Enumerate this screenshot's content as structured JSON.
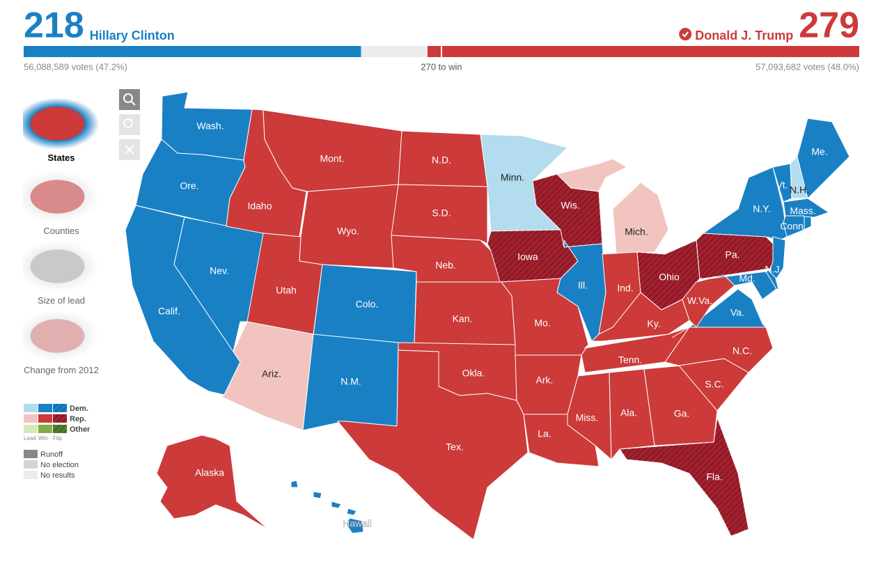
{
  "header": {
    "clinton": {
      "electoral_votes": 218,
      "name": "Hillary Clinton",
      "votes": "56,088,589 votes (47.2%)",
      "color": "#1a80c4"
    },
    "trump": {
      "electoral_votes": 279,
      "name": "Donald J. Trump",
      "votes": "57,093,682 votes (48.0%)",
      "color": "#cc3a3a",
      "winner": true
    },
    "to_win": {
      "value": 270,
      "label": "270 to win"
    }
  },
  "sidebar": {
    "views": [
      "States",
      "Counties",
      "Size of lead",
      "Change from 2012"
    ]
  },
  "legend": {
    "columns": [
      "Lead",
      "Win",
      "Flip"
    ],
    "parties": [
      {
        "label": "Dem.",
        "colors": [
          "#b3dcef",
          "#1a80c4",
          "#1a80c4"
        ]
      },
      {
        "label": "Rep.",
        "colors": [
          "#f2c4c0",
          "#cc3a3a",
          "#a3202e"
        ]
      },
      {
        "label": "Other",
        "colors": [
          "#d7e8b8",
          "#7fae4a",
          "#4f7f2a"
        ]
      }
    ],
    "status": [
      {
        "label": "Runoff",
        "color": "#888888"
      },
      {
        "label": "No election",
        "color": "#d4d4d4"
      },
      {
        "label": "No results",
        "color": "#ececec"
      }
    ]
  },
  "map": {
    "states": [
      {
        "label": "Wash.",
        "color": "#1a80c4"
      },
      {
        "label": "Ore.",
        "color": "#1a80c4"
      },
      {
        "label": "Calif.",
        "color": "#1a80c4"
      },
      {
        "label": "Nev.",
        "color": "#1a80c4"
      },
      {
        "label": "Idaho",
        "color": "#cc3a3a"
      },
      {
        "label": "Mont.",
        "color": "#cc3a3a"
      },
      {
        "label": "Wyo.",
        "color": "#cc3a3a"
      },
      {
        "label": "Utah",
        "color": "#cc3a3a"
      },
      {
        "label": "Colo.",
        "color": "#1a80c4"
      },
      {
        "label": "Ariz.",
        "color": "#f2c4c0"
      },
      {
        "label": "N.M.",
        "color": "#1a80c4"
      },
      {
        "label": "N.D.",
        "color": "#cc3a3a"
      },
      {
        "label": "S.D.",
        "color": "#cc3a3a"
      },
      {
        "label": "Neb.",
        "color": "#cc3a3a"
      },
      {
        "label": "Kan.",
        "color": "#cc3a3a"
      },
      {
        "label": "Okla.",
        "color": "#cc3a3a"
      },
      {
        "label": "Tex.",
        "color": "#cc3a3a"
      },
      {
        "label": "Minn.",
        "color": "#b3dcef"
      },
      {
        "label": "Iowa",
        "color": "#a3202e",
        "flip": true
      },
      {
        "label": "Mo.",
        "color": "#cc3a3a"
      },
      {
        "label": "Ark.",
        "color": "#cc3a3a"
      },
      {
        "label": "La.",
        "color": "#cc3a3a"
      },
      {
        "label": "Wis.",
        "color": "#a3202e",
        "flip": true
      },
      {
        "label": "Ill.",
        "color": "#1a80c4"
      },
      {
        "label": "Mich.",
        "color": "#f2c4c0"
      },
      {
        "label": "Ind.",
        "color": "#cc3a3a"
      },
      {
        "label": "Ohio",
        "color": "#a3202e",
        "flip": true
      },
      {
        "label": "Ky.",
        "color": "#cc3a3a"
      },
      {
        "label": "Tenn.",
        "color": "#cc3a3a"
      },
      {
        "label": "Miss.",
        "color": "#cc3a3a"
      },
      {
        "label": "Ala.",
        "color": "#cc3a3a"
      },
      {
        "label": "Ga.",
        "color": "#cc3a3a"
      },
      {
        "label": "Fla.",
        "color": "#a3202e",
        "flip": true
      },
      {
        "label": "S.C.",
        "color": "#cc3a3a"
      },
      {
        "label": "N.C.",
        "color": "#cc3a3a"
      },
      {
        "label": "Va.",
        "color": "#1a80c4"
      },
      {
        "label": "W.Va.",
        "color": "#cc3a3a"
      },
      {
        "label": "Pa.",
        "color": "#a3202e",
        "flip": true
      },
      {
        "label": "N.Y.",
        "color": "#1a80c4"
      },
      {
        "label": "Vt.",
        "color": "#1a80c4"
      },
      {
        "label": "N.H.",
        "color": "#b3dcef"
      },
      {
        "label": "Me.",
        "color": "#1a80c4"
      },
      {
        "label": "Mass.",
        "color": "#1a80c4"
      },
      {
        "label": "Conn.",
        "color": "#1a80c4"
      },
      {
        "label": "N.J.",
        "color": "#1a80c4"
      },
      {
        "label": "Md.",
        "color": "#1a80c4"
      },
      {
        "label": "Alaska",
        "color": "#cc3a3a"
      },
      {
        "label": "Hawaii",
        "color": "#1a80c4"
      }
    ]
  }
}
